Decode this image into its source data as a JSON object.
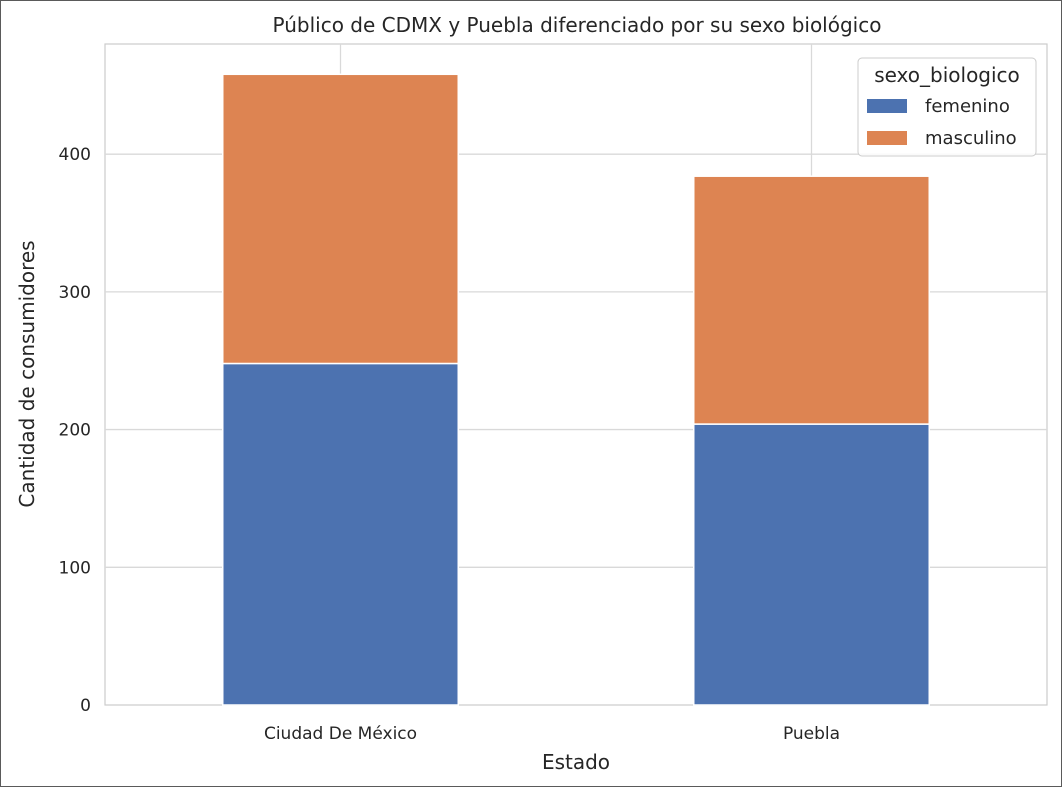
{
  "chart_data": {
    "type": "bar",
    "stacked": true,
    "title": "Público de CDMX y Puebla diferenciado por su sexo biológico",
    "xlabel": "Estado",
    "ylabel": "Cantidad de consumidores",
    "categories": [
      "Ciudad De México",
      "Puebla"
    ],
    "series": [
      {
        "name": "femenino",
        "values": [
          248,
          204
        ],
        "color": "#4c72b0"
      },
      {
        "name": "masculino",
        "values": [
          210,
          180
        ],
        "color": "#dd8452"
      }
    ],
    "ylim": [
      0,
      480
    ],
    "yticks": [
      0,
      100,
      200,
      300,
      400
    ],
    "grid": true,
    "legend": {
      "title": "sexo_biologico",
      "placement": "top-right"
    }
  }
}
